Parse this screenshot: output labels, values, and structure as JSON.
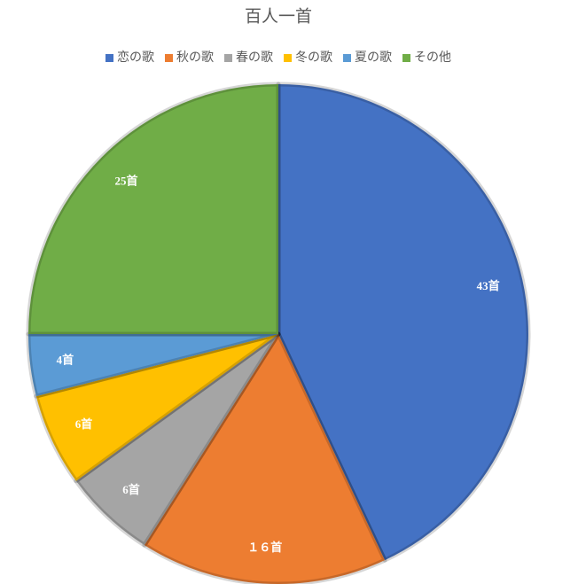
{
  "chart_data": {
    "type": "pie",
    "title": "百人一首",
    "categories": [
      "恋の歌",
      "秋の歌",
      "春の歌",
      "冬の歌",
      "夏の歌",
      "その他"
    ],
    "values": [
      43,
      16,
      6,
      6,
      4,
      25
    ],
    "value_labels": [
      "43首",
      "１６首",
      "6首",
      "6首",
      "4首",
      "25首"
    ],
    "colors": [
      "#4472c4",
      "#ed7d31",
      "#a5a5a5",
      "#ffc000",
      "#5b9bd5",
      "#70ad47"
    ],
    "legend": "top"
  }
}
